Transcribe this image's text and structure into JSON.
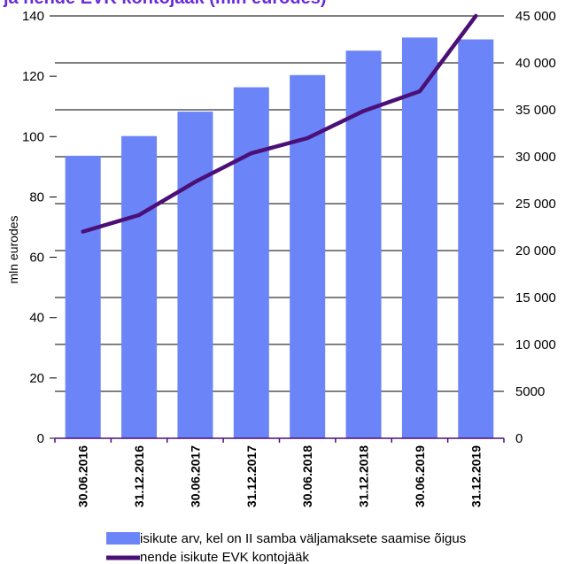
{
  "chart_data": {
    "type": "bar",
    "title": "ja nende EVK kontojääk (mln eurodes)",
    "categories": [
      "30.06.2016",
      "31.12.2016",
      "30.06.2017",
      "31.12.2017",
      "30.06.2018",
      "31.12.2018",
      "30.06.2019",
      "31.12.2019"
    ],
    "ylabel": "mln eurodes",
    "ylim": [
      0,
      140
    ],
    "y_ticks": [
      "0",
      "20",
      "40",
      "60",
      "80",
      "100",
      "120",
      "140"
    ],
    "y2lim": [
      0,
      45000
    ],
    "y2_ticks": [
      "0",
      "5000",
      "10 000",
      "15 000",
      "20 000",
      "25 000",
      "30 000",
      "35 000",
      "40 000",
      "45 000"
    ],
    "grid": true,
    "legend_position": "bottom",
    "series": [
      {
        "name": "isikute arv, kel on II samba väljamaksete saamise õigus",
        "type": "bar",
        "axis": "right",
        "color": "#6b84f8",
        "values": [
          30100,
          32200,
          34800,
          37400,
          38700,
          41300,
          42700,
          42500
        ]
      },
      {
        "name": "nende isikute EVK kontojääk",
        "type": "line",
        "axis": "left",
        "color": "#4b0f78",
        "values": [
          68.5,
          74,
          85,
          94.5,
          99.5,
          108.5,
          115,
          140
        ]
      }
    ]
  }
}
